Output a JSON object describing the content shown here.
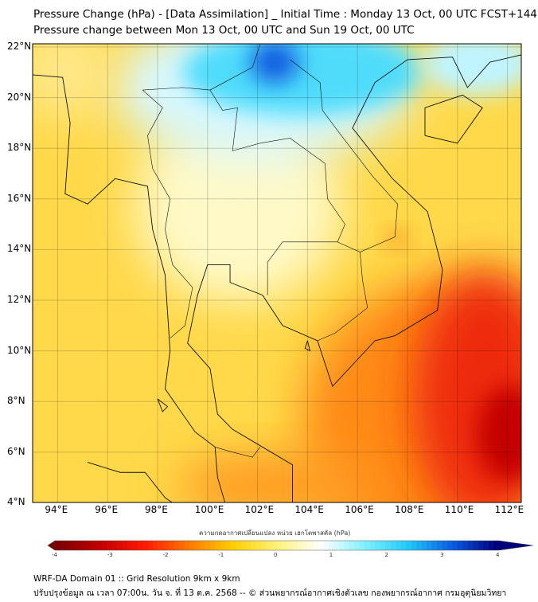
{
  "title": {
    "line1": "Pressure Change (hPa) - [Data Assimilation] _ Initial Time : Monday 13 Oct, 00 UTC FCST+144",
    "line2": "Pressure change between Mon 13 Oct, 00 UTC and Sun 19 Oct, 00 UTC"
  },
  "axes": {
    "lat_labels": [
      "22°N",
      "20°N",
      "18°N",
      "16°N",
      "14°N",
      "12°N",
      "10°N",
      "8°N",
      "6°N",
      "4°N"
    ],
    "lon_labels": [
      "94°E",
      "96°E",
      "98°E",
      "100°E",
      "102°E",
      "104°E",
      "106°E",
      "108°E",
      "110°E",
      "112°E"
    ]
  },
  "colorbar": {
    "label": "ความกดอากาศเปลี่ยนแปลง หน่วย เฮกโตพาสคัล (hPa)",
    "ticks": [
      "-4",
      "-3",
      "-2",
      "-1",
      "0",
      "1",
      "2",
      "3",
      "4"
    ],
    "range": [
      -4.3,
      4.3
    ],
    "colors": [
      "#7a0000",
      "#c40000",
      "#ff1a00",
      "#ff7a00",
      "#ffd000",
      "#fff27a",
      "#ffffff",
      "#7ff0ff",
      "#20c8f8",
      "#0a5be0",
      "#00007a"
    ]
  },
  "footer": {
    "line1": "WRF-DA Domain 01 :: Grid Resolution 9km x 9km",
    "line2": "ปรับปรุงข้อมูล ณ เวลา 07:00น. วัน จ. ที่ 13 ต.ค. 2568 -- © ส่วนพยากรณ์อากาศเชิงตัวเลข กองพยากรณ์อากาศ กรมอุตุนิยมวิทยา"
  }
}
